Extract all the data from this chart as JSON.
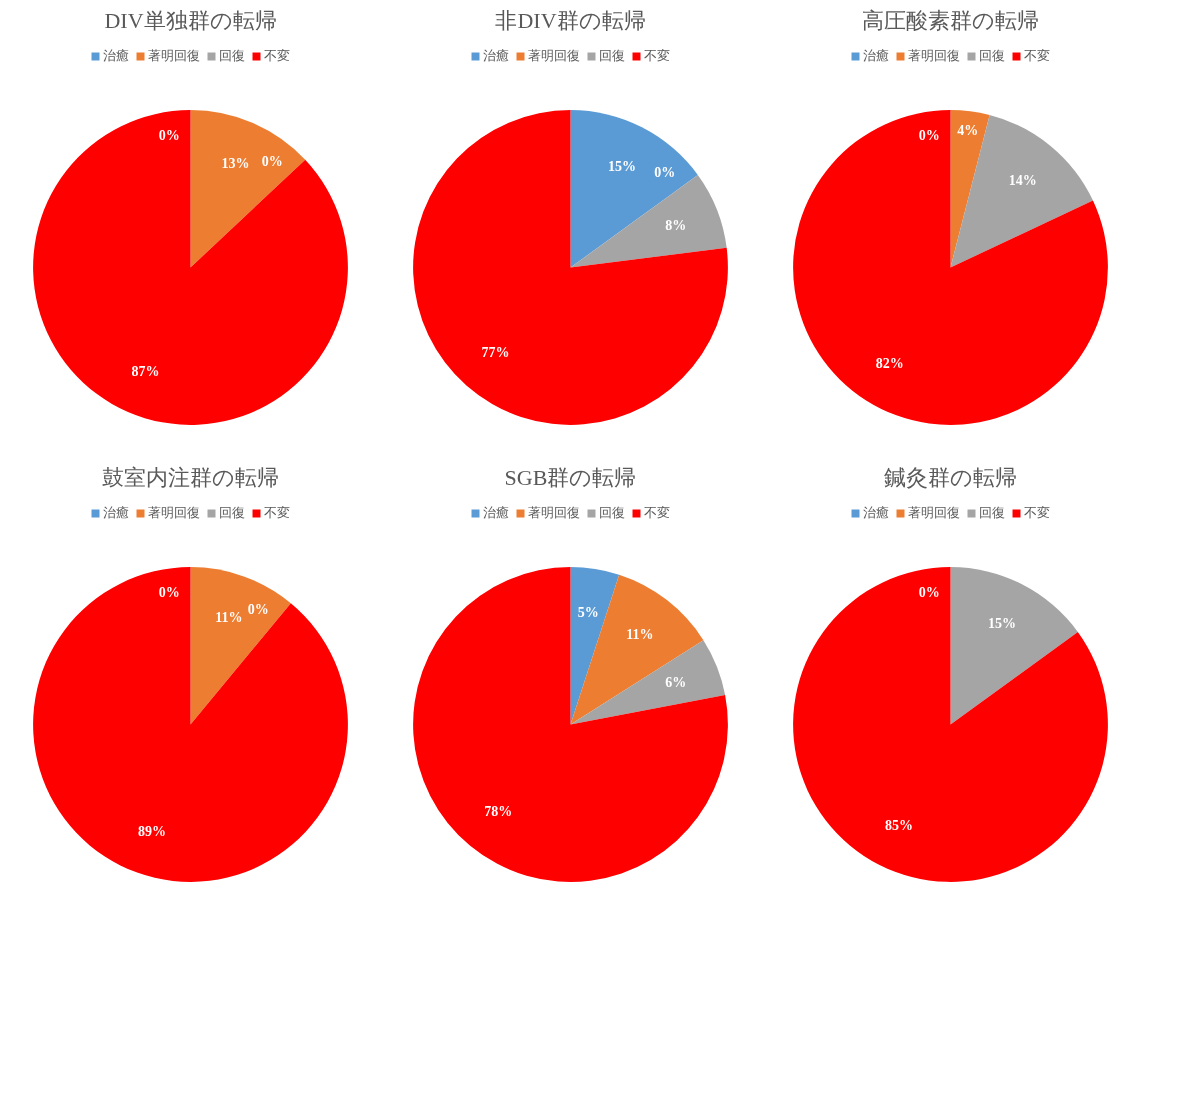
{
  "chart_data": [
    {
      "type": "pie",
      "title": "DIV単独群の転帰",
      "categories": [
        "治癒",
        "著明回復",
        "回復",
        "不変"
      ],
      "values": [
        0,
        13,
        0,
        87
      ],
      "value_labels": [
        "0%",
        "13%",
        "0%",
        "87%"
      ],
      "colors": [
        "#5b9bd5",
        "#ed7d31",
        "#a5a5a5",
        "#ff0000"
      ],
      "legend": "top"
    },
    {
      "type": "pie",
      "title": "非DIV群の転帰",
      "categories": [
        "治癒",
        "著明回復",
        "回復",
        "不変"
      ],
      "values": [
        15,
        0,
        8,
        77
      ],
      "value_labels": [
        "15%",
        "0%",
        "8%",
        "77%"
      ],
      "colors": [
        "#5b9bd5",
        "#ed7d31",
        "#a5a5a5",
        "#ff0000"
      ],
      "legend": "top"
    },
    {
      "type": "pie",
      "title": "高圧酸素群の転帰",
      "categories": [
        "治癒",
        "著明回復",
        "回復",
        "不変"
      ],
      "values": [
        0,
        4,
        14,
        82
      ],
      "value_labels": [
        "0%",
        "4%",
        "14%",
        "82%"
      ],
      "colors": [
        "#5b9bd5",
        "#ed7d31",
        "#a5a5a5",
        "#ff0000"
      ],
      "legend": "top"
    },
    {
      "type": "pie",
      "title": "鼓室内注群の転帰",
      "categories": [
        "治癒",
        "著明回復",
        "回復",
        "不変"
      ],
      "values": [
        0,
        11,
        0,
        89
      ],
      "value_labels": [
        "0%",
        "11%",
        "0%",
        "89%"
      ],
      "colors": [
        "#5b9bd5",
        "#ed7d31",
        "#a5a5a5",
        "#ff0000"
      ],
      "legend": "top"
    },
    {
      "type": "pie",
      "title": "SGB群の転帰",
      "categories": [
        "治癒",
        "著明回復",
        "回復",
        "不変"
      ],
      "values": [
        5,
        11,
        6,
        78
      ],
      "value_labels": [
        "5%",
        "11%",
        "6%",
        "78%"
      ],
      "colors": [
        "#5b9bd5",
        "#ed7d31",
        "#a5a5a5",
        "#ff0000"
      ],
      "legend": "top"
    },
    {
      "type": "pie",
      "title": "鍼灸群の転帰",
      "categories": [
        "治癒",
        "著明回復",
        "回復",
        "不変"
      ],
      "values": [
        0,
        0,
        15,
        85
      ],
      "value_labels": [
        "0%",
        null,
        "15%",
        "85%"
      ],
      "colors": [
        "#5b9bd5",
        "#ed7d31",
        "#a5a5a5",
        "#ff0000"
      ],
      "legend": "top"
    }
  ]
}
